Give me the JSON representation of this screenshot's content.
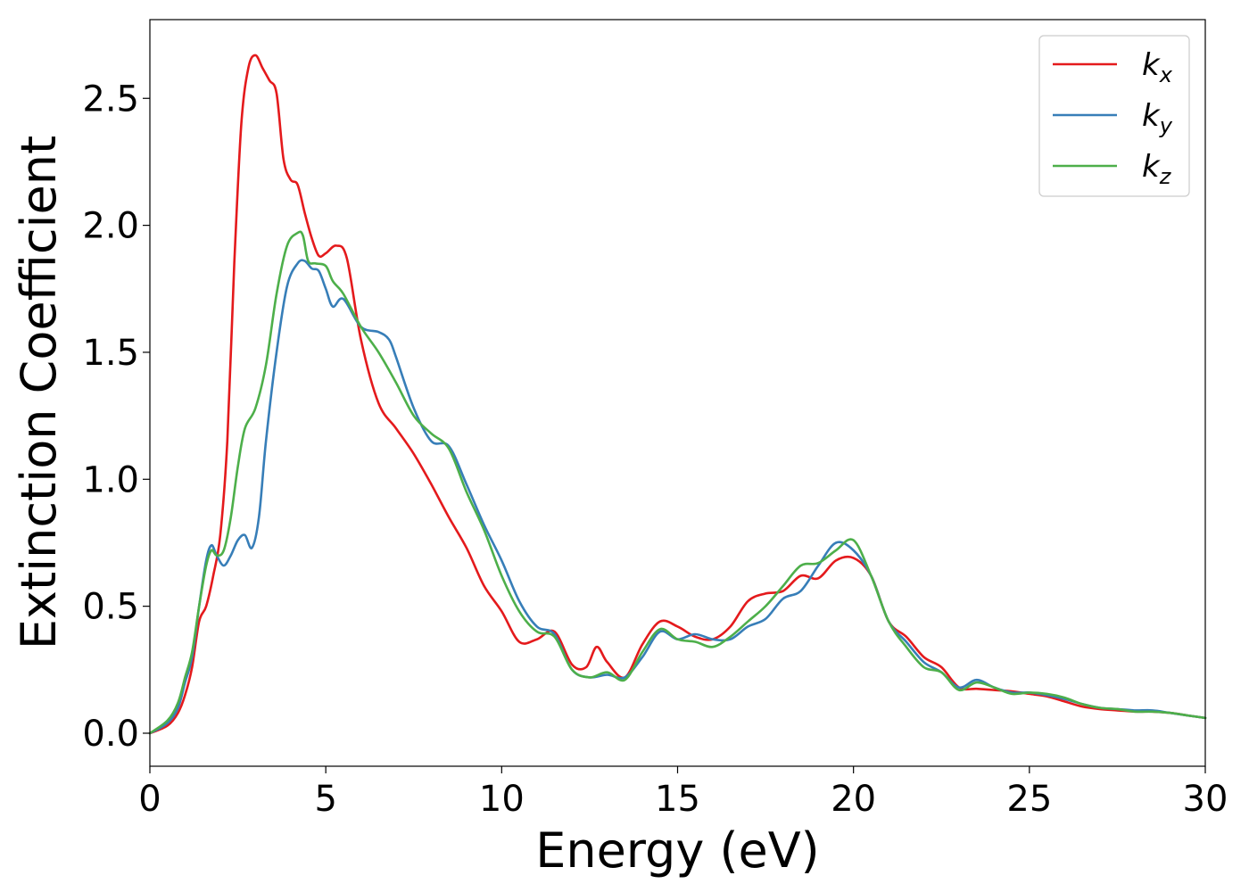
{
  "chart_data": {
    "type": "line",
    "title": "",
    "xlabel": "Energy (eV)",
    "ylabel": "Extinction Coefficient",
    "xlim": [
      0,
      30
    ],
    "ylim": [
      -0.13,
      2.81
    ],
    "xticks": [
      0,
      5,
      10,
      15,
      20,
      25,
      30
    ],
    "yticks": [
      0.0,
      0.5,
      1.0,
      1.5,
      2.0,
      2.5
    ],
    "xtick_labels": [
      "0",
      "5",
      "10",
      "15",
      "20",
      "25",
      "30"
    ],
    "ytick_labels": [
      "0.0",
      "0.5",
      "1.0",
      "1.5",
      "2.0",
      "2.5"
    ],
    "grid": false,
    "legend_position": "top-right",
    "series": [
      {
        "name": "k_x",
        "label_base": "k",
        "label_sub": "x",
        "color": "#e41a1c",
        "x": [
          0,
          0.5,
          0.8,
          1.0,
          1.2,
          1.4,
          1.6,
          1.8,
          2.0,
          2.2,
          2.4,
          2.6,
          2.8,
          3.0,
          3.2,
          3.4,
          3.6,
          3.8,
          4.0,
          4.2,
          4.4,
          4.6,
          4.8,
          5.0,
          5.3,
          5.6,
          6.0,
          6.5,
          7.0,
          7.5,
          8.0,
          8.5,
          9.0,
          9.5,
          10.0,
          10.5,
          11.0,
          11.5,
          12.0,
          12.4,
          12.7,
          13.0,
          13.5,
          14.0,
          14.5,
          15.0,
          15.5,
          16.0,
          16.5,
          17.0,
          17.5,
          18.0,
          18.5,
          19.0,
          19.5,
          20.0,
          20.5,
          21.0,
          21.5,
          22.0,
          22.5,
          23.0,
          23.5,
          24.0,
          24.5,
          25.0,
          25.5,
          26.0,
          26.5,
          27.0,
          27.5,
          28.0,
          28.5,
          29.0,
          29.5,
          30.0
        ],
        "y": [
          0.0,
          0.03,
          0.08,
          0.15,
          0.26,
          0.44,
          0.5,
          0.62,
          0.78,
          1.15,
          1.85,
          2.4,
          2.62,
          2.67,
          2.62,
          2.57,
          2.52,
          2.26,
          2.18,
          2.16,
          2.05,
          1.95,
          1.88,
          1.89,
          1.92,
          1.87,
          1.55,
          1.3,
          1.2,
          1.1,
          0.98,
          0.85,
          0.73,
          0.58,
          0.48,
          0.36,
          0.37,
          0.4,
          0.27,
          0.26,
          0.34,
          0.28,
          0.22,
          0.35,
          0.44,
          0.42,
          0.38,
          0.37,
          0.42,
          0.52,
          0.55,
          0.56,
          0.62,
          0.61,
          0.68,
          0.69,
          0.62,
          0.44,
          0.38,
          0.3,
          0.26,
          0.18,
          0.175,
          0.17,
          0.165,
          0.155,
          0.145,
          0.125,
          0.105,
          0.095,
          0.09,
          0.085,
          0.085,
          0.08,
          0.07,
          0.06
        ]
      },
      {
        "name": "k_y",
        "label_base": "k",
        "label_sub": "y",
        "color": "#377eb8",
        "x": [
          0,
          0.5,
          0.8,
          1.0,
          1.2,
          1.4,
          1.6,
          1.75,
          1.9,
          2.1,
          2.3,
          2.5,
          2.7,
          2.9,
          3.1,
          3.3,
          3.6,
          3.9,
          4.2,
          4.4,
          4.6,
          4.8,
          5.0,
          5.2,
          5.5,
          6.0,
          6.5,
          6.8,
          7.0,
          7.5,
          8.0,
          8.5,
          9.0,
          9.5,
          10.0,
          10.5,
          11.0,
          11.5,
          12.0,
          12.5,
          13.0,
          13.5,
          14.0,
          14.5,
          15.0,
          15.5,
          16.0,
          16.5,
          17.0,
          17.5,
          18.0,
          18.5,
          19.0,
          19.5,
          20.0,
          20.5,
          21.0,
          21.5,
          22.0,
          22.5,
          23.0,
          23.5,
          24.0,
          24.5,
          25.0,
          25.5,
          26.0,
          26.5,
          27.0,
          27.5,
          28.0,
          28.5,
          29.0,
          29.5,
          30.0
        ],
        "y": [
          0.0,
          0.04,
          0.1,
          0.2,
          0.3,
          0.5,
          0.68,
          0.74,
          0.7,
          0.66,
          0.7,
          0.76,
          0.78,
          0.73,
          0.85,
          1.15,
          1.5,
          1.76,
          1.85,
          1.86,
          1.83,
          1.82,
          1.75,
          1.68,
          1.71,
          1.6,
          1.58,
          1.55,
          1.48,
          1.28,
          1.15,
          1.13,
          0.98,
          0.82,
          0.68,
          0.52,
          0.42,
          0.39,
          0.25,
          0.22,
          0.23,
          0.22,
          0.3,
          0.4,
          0.37,
          0.39,
          0.37,
          0.37,
          0.42,
          0.45,
          0.53,
          0.56,
          0.66,
          0.75,
          0.72,
          0.62,
          0.44,
          0.36,
          0.28,
          0.24,
          0.18,
          0.21,
          0.18,
          0.16,
          0.16,
          0.15,
          0.135,
          0.115,
          0.1,
          0.095,
          0.09,
          0.09,
          0.08,
          0.07,
          0.06
        ]
      },
      {
        "name": "k_z",
        "label_base": "k",
        "label_sub": "z",
        "color": "#4daf4a",
        "x": [
          0,
          0.5,
          0.8,
          1.0,
          1.2,
          1.4,
          1.6,
          1.75,
          1.9,
          2.1,
          2.3,
          2.5,
          2.7,
          3.0,
          3.3,
          3.6,
          3.9,
          4.2,
          4.35,
          4.5,
          4.7,
          5.0,
          5.2,
          5.5,
          6.0,
          6.5,
          7.0,
          7.5,
          8.0,
          8.5,
          9.0,
          9.5,
          10.0,
          10.5,
          11.0,
          11.5,
          12.0,
          12.5,
          13.0,
          13.5,
          14.0,
          14.5,
          15.0,
          15.5,
          16.0,
          16.5,
          17.0,
          17.5,
          18.0,
          18.5,
          19.0,
          19.5,
          20.0,
          20.5,
          21.0,
          21.5,
          22.0,
          22.5,
          23.0,
          23.5,
          24.0,
          24.5,
          25.0,
          25.5,
          26.0,
          26.5,
          27.0,
          27.5,
          28.0,
          28.5,
          29.0,
          29.5,
          30.0
        ],
        "y": [
          0.0,
          0.05,
          0.12,
          0.22,
          0.32,
          0.5,
          0.66,
          0.72,
          0.7,
          0.72,
          0.85,
          1.05,
          1.2,
          1.28,
          1.45,
          1.73,
          1.92,
          1.97,
          1.96,
          1.86,
          1.85,
          1.84,
          1.78,
          1.73,
          1.6,
          1.5,
          1.38,
          1.25,
          1.18,
          1.12,
          0.95,
          0.8,
          0.62,
          0.48,
          0.4,
          0.38,
          0.25,
          0.22,
          0.24,
          0.21,
          0.32,
          0.41,
          0.37,
          0.36,
          0.34,
          0.38,
          0.44,
          0.5,
          0.58,
          0.66,
          0.67,
          0.72,
          0.76,
          0.62,
          0.44,
          0.34,
          0.26,
          0.24,
          0.17,
          0.2,
          0.18,
          0.155,
          0.16,
          0.155,
          0.14,
          0.115,
          0.1,
          0.095,
          0.085,
          0.085,
          0.08,
          0.07,
          0.06
        ]
      }
    ]
  }
}
